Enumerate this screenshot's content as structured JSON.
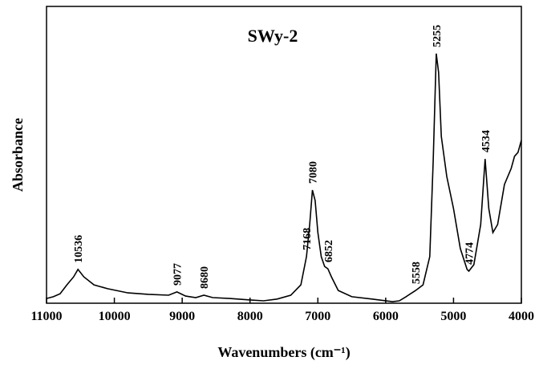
{
  "chart_data": {
    "type": "line",
    "title": "SWy-2",
    "x_label": "Wavenumbers (cm⁻¹)",
    "y_label": "Absorbance",
    "xlim": [
      11000,
      4000
    ],
    "xticks": [
      11000,
      10000,
      9000,
      8000,
      7000,
      6000,
      5000,
      4000
    ],
    "ylim": [
      0,
      1
    ],
    "color": "#000000",
    "x": [
      11000,
      10900,
      10800,
      10700,
      10600,
      10536,
      10450,
      10300,
      10100,
      9800,
      9500,
      9200,
      9077,
      8950,
      8800,
      8680,
      8550,
      8300,
      8000,
      7800,
      7600,
      7400,
      7250,
      7168,
      7120,
      7080,
      7040,
      7000,
      6950,
      6900,
      6852,
      6800,
      6700,
      6500,
      6200,
      5900,
      5800,
      5700,
      5558,
      5450,
      5350,
      5300,
      5255,
      5220,
      5180,
      5100,
      5000,
      4900,
      4800,
      4774,
      4700,
      4600,
      4534,
      4480,
      4420,
      4350,
      4250,
      4150,
      4100,
      4050,
      4000
    ],
    "y": [
      0.016,
      0.022,
      0.032,
      0.062,
      0.089,
      0.114,
      0.089,
      0.062,
      0.049,
      0.035,
      0.03,
      0.027,
      0.038,
      0.024,
      0.019,
      0.027,
      0.019,
      0.016,
      0.011,
      0.008,
      0.014,
      0.027,
      0.062,
      0.157,
      0.265,
      0.381,
      0.346,
      0.238,
      0.157,
      0.124,
      0.116,
      0.089,
      0.043,
      0.022,
      0.014,
      0.005,
      0.008,
      0.022,
      0.043,
      0.062,
      0.157,
      0.481,
      0.841,
      0.778,
      0.562,
      0.427,
      0.319,
      0.184,
      0.114,
      0.108,
      0.13,
      0.265,
      0.486,
      0.319,
      0.238,
      0.265,
      0.4,
      0.454,
      0.495,
      0.508,
      0.549
    ],
    "peak_labels": [
      10536,
      9077,
      8680,
      7168,
      7080,
      6852,
      5558,
      5255,
      4774,
      4534
    ]
  }
}
